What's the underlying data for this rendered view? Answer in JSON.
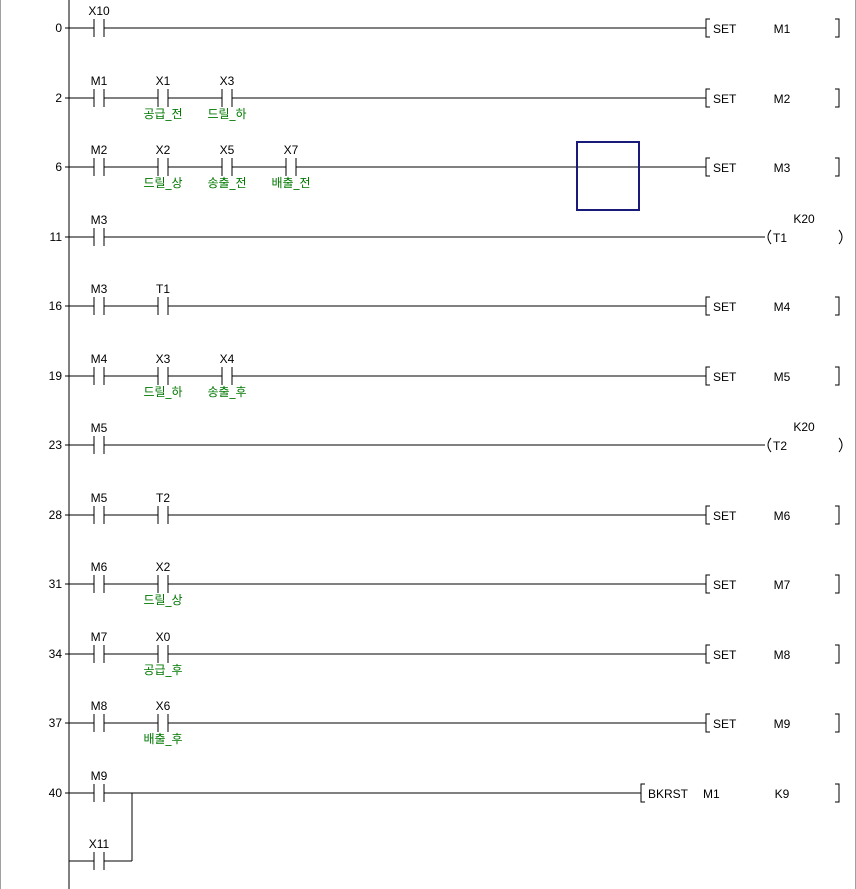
{
  "colors": {
    "wire": "#000000",
    "comment": "#007700",
    "cursor": "#1a1a7a",
    "background": "#ffffff"
  },
  "rungs": [
    {
      "step": "0",
      "contacts": [
        {
          "device": "X10",
          "comment": ""
        }
      ],
      "output": {
        "type": "apply",
        "instr": "SET",
        "op1": "M1",
        "op2": ""
      }
    },
    {
      "step": "2",
      "contacts": [
        {
          "device": "M1",
          "comment": ""
        },
        {
          "device": "X1",
          "comment": "공급_전"
        },
        {
          "device": "X3",
          "comment": "드릴_하"
        }
      ],
      "output": {
        "type": "apply",
        "instr": "SET",
        "op1": "M2",
        "op2": ""
      }
    },
    {
      "step": "6",
      "contacts": [
        {
          "device": "M2",
          "comment": ""
        },
        {
          "device": "X2",
          "comment": "드릴_상"
        },
        {
          "device": "X5",
          "comment": "송출_전"
        },
        {
          "device": "X7",
          "comment": "배출_전"
        }
      ],
      "output": {
        "type": "apply",
        "instr": "SET",
        "op1": "M3",
        "op2": ""
      },
      "cursor": true
    },
    {
      "step": "11",
      "contacts": [
        {
          "device": "M3",
          "comment": ""
        }
      ],
      "output": {
        "type": "coil",
        "instr": "",
        "op1": "T1",
        "op2": "K20"
      }
    },
    {
      "step": "16",
      "contacts": [
        {
          "device": "M3",
          "comment": ""
        },
        {
          "device": "T1",
          "comment": ""
        }
      ],
      "output": {
        "type": "apply",
        "instr": "SET",
        "op1": "M4",
        "op2": ""
      }
    },
    {
      "step": "19",
      "contacts": [
        {
          "device": "M4",
          "comment": ""
        },
        {
          "device": "X3",
          "comment": "드릴_하"
        },
        {
          "device": "X4",
          "comment": "송출_후"
        }
      ],
      "output": {
        "type": "apply",
        "instr": "SET",
        "op1": "M5",
        "op2": ""
      }
    },
    {
      "step": "23",
      "contacts": [
        {
          "device": "M5",
          "comment": ""
        }
      ],
      "output": {
        "type": "coil",
        "instr": "",
        "op1": "T2",
        "op2": "K20"
      }
    },
    {
      "step": "28",
      "contacts": [
        {
          "device": "M5",
          "comment": ""
        },
        {
          "device": "T2",
          "comment": ""
        }
      ],
      "output": {
        "type": "apply",
        "instr": "SET",
        "op1": "M6",
        "op2": ""
      }
    },
    {
      "step": "31",
      "contacts": [
        {
          "device": "M6",
          "comment": ""
        },
        {
          "device": "X2",
          "comment": "드릴_상"
        }
      ],
      "output": {
        "type": "apply",
        "instr": "SET",
        "op1": "M7",
        "op2": ""
      }
    },
    {
      "step": "34",
      "contacts": [
        {
          "device": "M7",
          "comment": ""
        },
        {
          "device": "X0",
          "comment": "공급_후"
        }
      ],
      "output": {
        "type": "apply",
        "instr": "SET",
        "op1": "M8",
        "op2": ""
      }
    },
    {
      "step": "37",
      "contacts": [
        {
          "device": "M8",
          "comment": ""
        },
        {
          "device": "X6",
          "comment": "배출_후"
        }
      ],
      "output": {
        "type": "apply",
        "instr": "SET",
        "op1": "M9",
        "op2": ""
      }
    },
    {
      "step": "40",
      "contacts": [
        {
          "device": "M9",
          "comment": ""
        }
      ],
      "branch": {
        "device": "X11"
      },
      "output": {
        "type": "apply",
        "instr": "BKRST",
        "op1": "M1",
        "op2": "K9"
      }
    }
  ]
}
